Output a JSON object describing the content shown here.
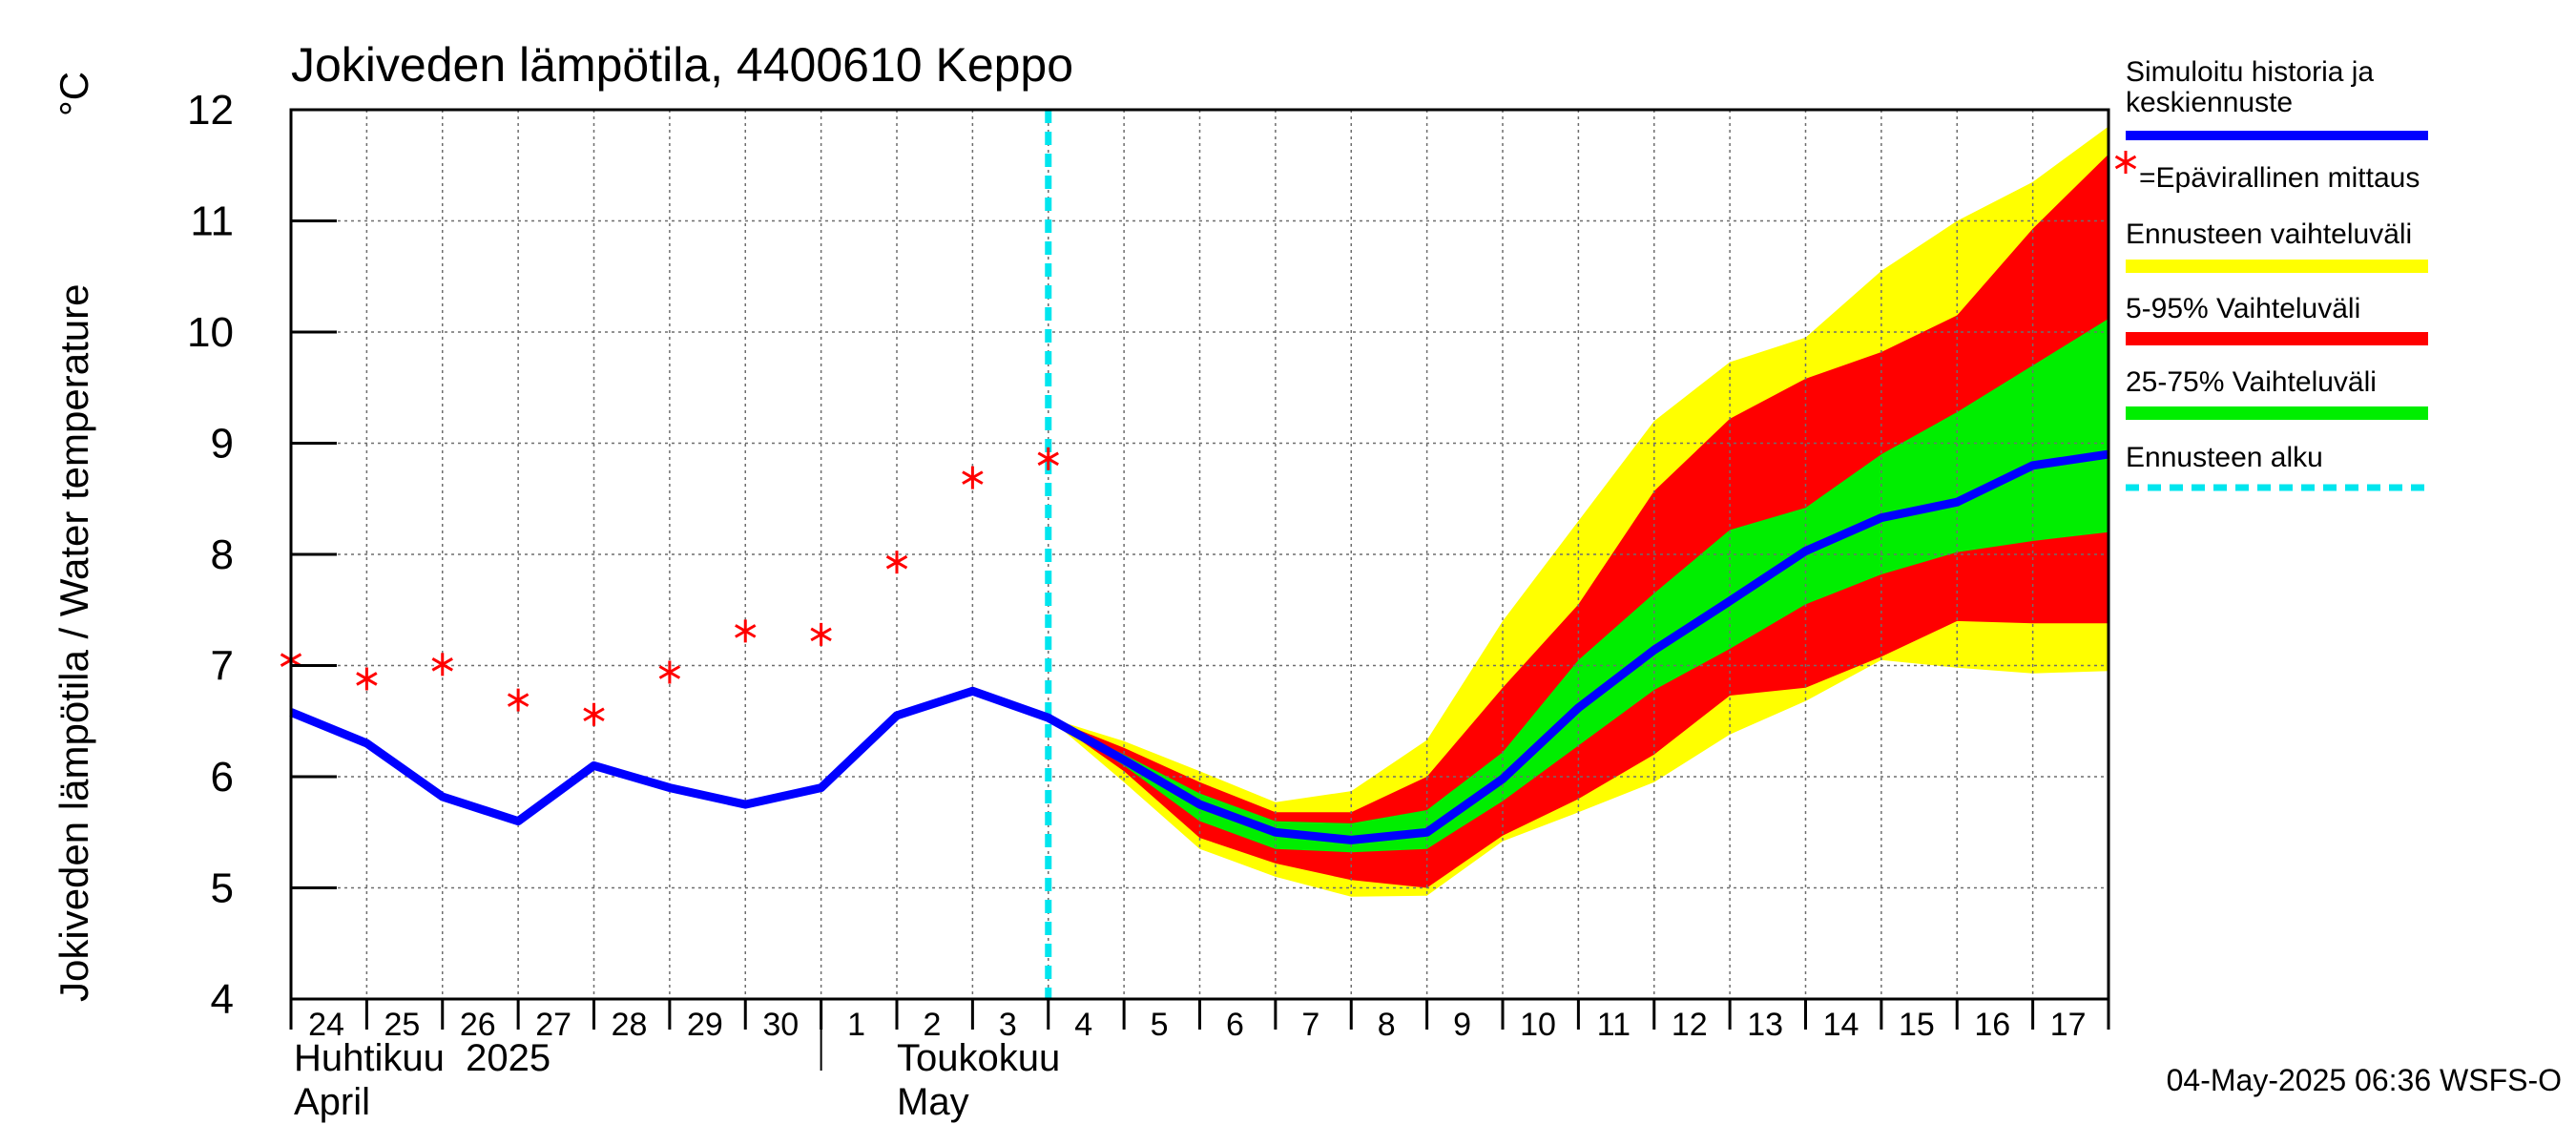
{
  "chart_data": {
    "type": "line",
    "title": "Jokiveden lämpötila, 4400610 Keppo",
    "ylabel": "Jokiveden lämpötila / Water temperature",
    "yunit": "°C",
    "ylim": [
      4,
      12
    ],
    "yticks": [
      "4",
      "5",
      "6",
      "7",
      "8",
      "9",
      "10",
      "11",
      "12"
    ],
    "xlim": [
      0,
      24
    ],
    "grid": true,
    "day_ticks": [
      "24",
      "25",
      "26",
      "27",
      "28",
      "29",
      "30",
      "1",
      "2",
      "3",
      "4",
      "5",
      "6",
      "7",
      "8",
      "9",
      "10",
      "11",
      "12",
      "13",
      "14",
      "15",
      "16",
      "17"
    ],
    "month_labels": {
      "april_fi": "Huhtikuu  2025",
      "april_en": "April",
      "may_fi": "Toukokuu",
      "may_en": "May"
    },
    "forecast_start_x": 10,
    "series": [
      {
        "name": "Simuloitu historia ja keskiennuste",
        "color": "#0000ff",
        "x": [
          0,
          1,
          2,
          3,
          4,
          5,
          6,
          7,
          8,
          9,
          10,
          11,
          12,
          13,
          14,
          15,
          16,
          17,
          18,
          19,
          20,
          21,
          22,
          23,
          24
        ],
        "values": [
          6.58,
          6.3,
          5.82,
          5.6,
          6.1,
          5.9,
          5.75,
          5.9,
          6.55,
          6.77,
          6.53,
          6.15,
          5.75,
          5.5,
          5.43,
          5.5,
          5.98,
          6.62,
          7.14,
          7.58,
          8.03,
          8.33,
          8.47,
          8.8,
          8.9
        ]
      },
      {
        "name": "Epävirallinen mittaus",
        "color": "#ff0000",
        "x": [
          0,
          1,
          2,
          3,
          4,
          5,
          6,
          7,
          8,
          9,
          10
        ],
        "values": [
          7.05,
          6.88,
          7.01,
          6.69,
          6.56,
          6.94,
          7.31,
          7.28,
          7.93,
          8.69,
          8.86
        ]
      }
    ],
    "bands": {
      "x": [
        10,
        11,
        12,
        13,
        14,
        15,
        16,
        17,
        18,
        19,
        20,
        21,
        22,
        23,
        24
      ],
      "outer_upper": [
        6.53,
        6.32,
        6.05,
        5.77,
        5.87,
        6.33,
        7.4,
        8.3,
        9.2,
        9.73,
        9.95,
        10.55,
        11.0,
        11.35,
        11.85
      ],
      "outer_lower": [
        6.53,
        5.95,
        5.35,
        5.1,
        4.92,
        4.93,
        5.42,
        5.68,
        5.95,
        6.38,
        6.68,
        7.05,
        6.98,
        6.93,
        6.95
      ],
      "p95": [
        6.53,
        6.26,
        5.95,
        5.68,
        5.68,
        6.0,
        6.8,
        7.55,
        8.57,
        9.22,
        9.58,
        9.82,
        10.15,
        10.93,
        11.6
      ],
      "p5": [
        6.53,
        6.05,
        5.45,
        5.22,
        5.07,
        5.0,
        5.47,
        5.8,
        6.2,
        6.73,
        6.8,
        7.08,
        7.4,
        7.38,
        7.38
      ],
      "p75": [
        6.53,
        6.2,
        5.85,
        5.6,
        5.58,
        5.7,
        6.22,
        7.05,
        7.65,
        8.22,
        8.42,
        8.9,
        9.28,
        9.7,
        10.12
      ],
      "p25": [
        6.53,
        6.1,
        5.6,
        5.35,
        5.32,
        5.35,
        5.78,
        6.28,
        6.78,
        7.15,
        7.55,
        7.82,
        8.02,
        8.12,
        8.2
      ]
    },
    "legend": [
      {
        "label": "Simuloitu historia ja keskiennuste",
        "color": "#0000ff",
        "kind": "line"
      },
      {
        "label": "=Epävirallinen mittaus",
        "color": "#ff0000",
        "kind": "marker"
      },
      {
        "label": "Ennusteen vaihteluväli",
        "color": "#ffff00",
        "kind": "band"
      },
      {
        "label": "5-95% Vaihteluväli",
        "color": "#ff0000",
        "kind": "band"
      },
      {
        "label": "25-75% Vaihteluväli",
        "color": "#00ee00",
        "kind": "band"
      },
      {
        "label": "Ennusteen alku",
        "color": "#00e5ee",
        "kind": "dashed"
      }
    ],
    "legend_placement": "right",
    "timestamp": "04-May-2025 06:36 WSFS-O"
  }
}
